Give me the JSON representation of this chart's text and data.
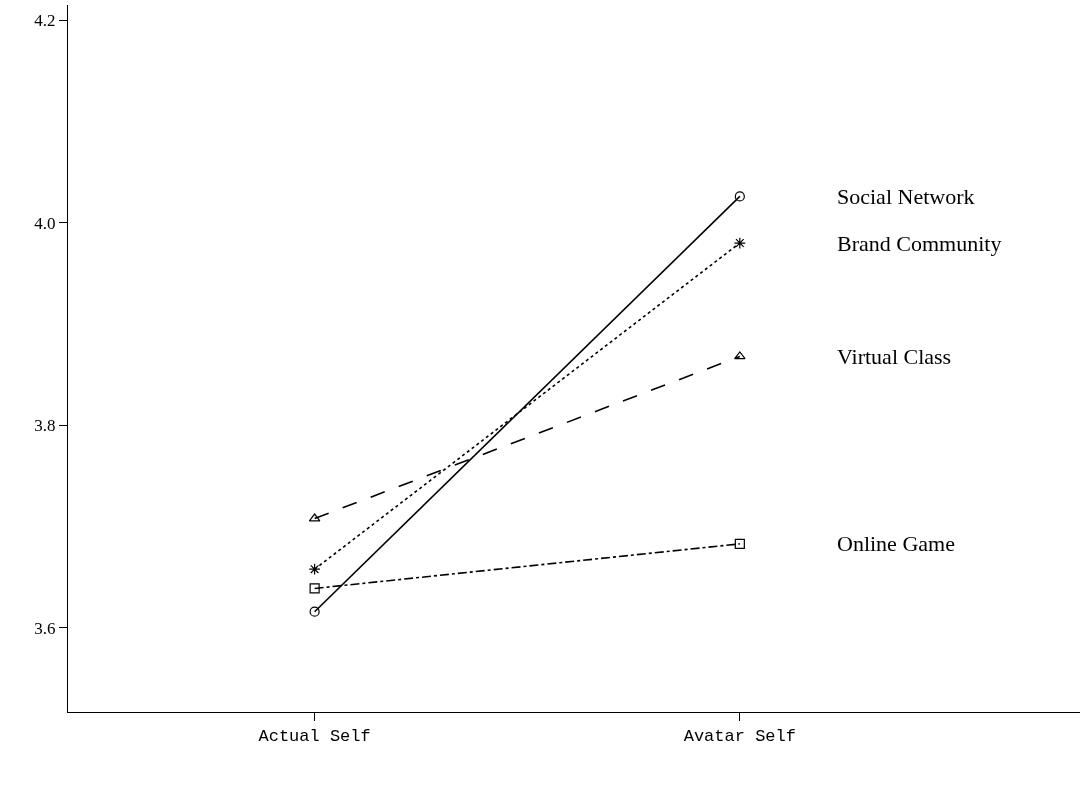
{
  "chart_data": {
    "type": "line",
    "categories": [
      "Actual Self",
      "Avatar Self"
    ],
    "series": [
      {
        "name": "Social Network",
        "color": "#000000",
        "values": [
          3.616,
          4.026
        ],
        "marker": "circle",
        "line_style": "solid"
      },
      {
        "name": "Brand Community",
        "color": "#000000",
        "values": [
          3.658,
          3.98
        ],
        "marker": "cross",
        "line_style": "dotted"
      },
      {
        "name": "Virtual Class",
        "color": "#000000",
        "values": [
          3.708,
          3.868
        ],
        "marker": "triangle",
        "line_style": "dashed"
      },
      {
        "name": "Online Game",
        "color": "#000000",
        "values": [
          3.639,
          3.683
        ],
        "marker": "square",
        "line_style": "dashdot"
      }
    ],
    "ylim": [
      3.517,
      4.215
    ],
    "yticks": [
      3.6,
      3.8,
      {
        "value": 4,
        "label": "4.0"
      },
      4.2
    ],
    "grid": false,
    "legend": false
  }
}
